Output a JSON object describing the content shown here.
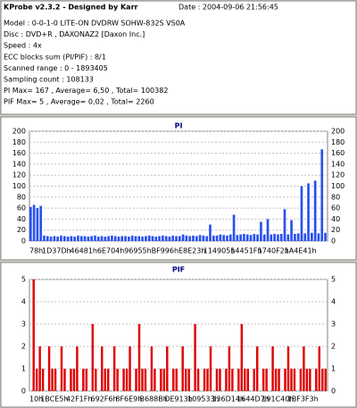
{
  "header": {
    "title": "KProbe v2.3.2 - Designed by Karr",
    "date": "Date : 2004-09-06 21:56:45",
    "lines": [
      "Model : 0-0-1-0 LITE-ON DVDRW SOHW-832S  VS0A",
      "Disc : DVD+R , DAXONAZ2 [Daxon Inc.]",
      "Speed : 4x",
      "ECC blocks sum (PI/PIF) : 8/1",
      "Scanned range : 0 - 1893405",
      "Sampling count : 108133",
      "PI Max= 167 , Average= 6,50 , Total= 100382",
      "PIF Max= 5 , Average= 0,02 , Total= 2260"
    ]
  },
  "chart_data": [
    {
      "type": "bar",
      "title": "PI",
      "color": "#2850f0",
      "grid": true,
      "ylim": [
        0,
        200
      ],
      "yticks": [
        0,
        20,
        40,
        60,
        80,
        100,
        120,
        140,
        160,
        180,
        200
      ],
      "categories": [
        "78h",
        null,
        null,
        null,
        null,
        null,
        null,
        null,
        "1D37Dh",
        null,
        null,
        null,
        null,
        null,
        null,
        null,
        "46481h",
        null,
        null,
        null,
        null,
        null,
        null,
        null,
        "6E704h",
        null,
        null,
        null,
        null,
        null,
        null,
        null,
        "96955h",
        null,
        null,
        null,
        null,
        null,
        null,
        null,
        "BF996h",
        null,
        null,
        null,
        null,
        null,
        null,
        null,
        "E8E23h",
        null,
        null,
        null,
        null,
        null,
        null,
        null,
        "114905h",
        null,
        null,
        null,
        null,
        null,
        null,
        null,
        "14451Fh",
        null,
        null,
        null,
        null,
        null,
        null,
        null,
        "1740F2h",
        null,
        null,
        null,
        null,
        null,
        null,
        null,
        "1A4E41h",
        null,
        null,
        null,
        null,
        null,
        null,
        null
      ],
      "values": [
        62,
        66,
        60,
        64,
        10,
        9,
        8,
        9,
        8,
        10,
        9,
        8,
        9,
        8,
        10,
        9,
        9,
        8,
        9,
        10,
        8,
        9,
        8,
        9,
        10,
        9,
        8,
        9,
        9,
        8,
        10,
        9,
        9,
        8,
        9,
        10,
        9,
        8,
        9,
        10,
        9,
        8,
        10,
        9,
        9,
        12,
        10,
        9,
        10,
        9,
        11,
        10,
        9,
        30,
        10,
        10,
        12,
        11,
        10,
        12,
        48,
        11,
        12,
        13,
        12,
        11,
        13,
        12,
        35,
        12,
        40,
        12,
        13,
        12,
        13,
        58,
        12,
        38,
        13,
        14,
        100,
        14,
        105,
        15,
        110,
        14,
        167,
        15
      ]
    },
    {
      "type": "bar",
      "title": "PIF",
      "color": "#e00000",
      "grid": true,
      "ylim": [
        0,
        5
      ],
      "yticks": [
        0,
        1,
        2,
        3,
        4,
        5
      ],
      "categories": [
        "10h",
        null,
        null,
        null,
        null,
        null,
        null,
        null,
        "1BCE5h",
        null,
        null,
        null,
        null,
        null,
        null,
        null,
        "42F1Fh",
        null,
        null,
        null,
        null,
        null,
        null,
        null,
        "692F6h",
        null,
        null,
        null,
        null,
        null,
        null,
        null,
        "8F6E9h",
        null,
        null,
        null,
        null,
        null,
        null,
        null,
        "B688Bh",
        null,
        null,
        null,
        null,
        null,
        null,
        null,
        "DE913h",
        null,
        null,
        null,
        null,
        null,
        null,
        null,
        "109533h",
        null,
        null,
        null,
        null,
        null,
        null,
        null,
        "136D14h",
        null,
        null,
        null,
        null,
        null,
        null,
        null,
        "1644D7h",
        null,
        null,
        null,
        null,
        null,
        null,
        null,
        "191C40h",
        null,
        null,
        null,
        null,
        null,
        null,
        null,
        "1BF3F3h",
        null,
        null,
        null,
        null,
        null,
        null,
        null
      ],
      "values": [
        0,
        5,
        1,
        2,
        1,
        0,
        2,
        1,
        1,
        0,
        2,
        1,
        0,
        1,
        1,
        2,
        0,
        1,
        1,
        0,
        3,
        1,
        0,
        2,
        1,
        1,
        0,
        2,
        1,
        0,
        1,
        1,
        2,
        0,
        1,
        3,
        1,
        1,
        0,
        2,
        1,
        0,
        1,
        1,
        2,
        0,
        1,
        1,
        0,
        2,
        1,
        1,
        0,
        3,
        1,
        0,
        1,
        1,
        2,
        0,
        1,
        1,
        0,
        1,
        2,
        1,
        0,
        1,
        3,
        1,
        1,
        0,
        1,
        2,
        0,
        1,
        1,
        0,
        2,
        1,
        1,
        0,
        1,
        2,
        1,
        1,
        0,
        1,
        2,
        1,
        1,
        0,
        1,
        2,
        1,
        1
      ]
    }
  ]
}
